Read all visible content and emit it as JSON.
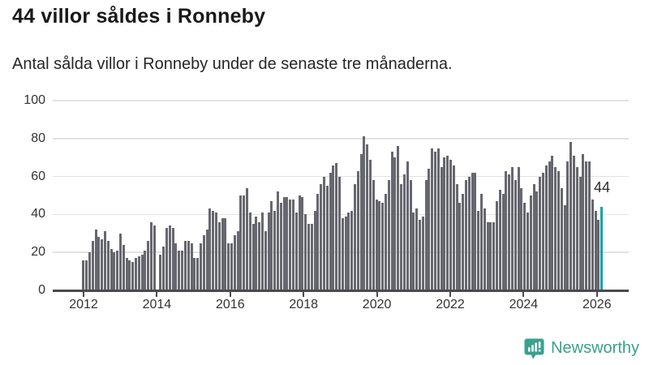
{
  "header": {
    "title": "44 villor såldes i Ronneby",
    "subtitle": "Antal sålda villor i Ronneby under de senaste tre månaderna."
  },
  "chart_data": {
    "type": "bar",
    "title": "44 villor såldes i Ronneby",
    "subtitle": "Antal sålda villor i Ronneby under de senaste tre månaderna.",
    "frequency": "monthly",
    "start_month": "2012-01",
    "end_month": "2026-01",
    "values": [
      16,
      16,
      20,
      26,
      32,
      28,
      27,
      31,
      26,
      22,
      20,
      21,
      30,
      24,
      17,
      16,
      15,
      17,
      18,
      19,
      21,
      26,
      36,
      34,
      0,
      19,
      23,
      33,
      34,
      33,
      25,
      21,
      21,
      26,
      26,
      25,
      17,
      17,
      25,
      29,
      32,
      43,
      42,
      41,
      36,
      38,
      38,
      25,
      25,
      29,
      31,
      50,
      50,
      54,
      41,
      35,
      39,
      36,
      41,
      31,
      41,
      47,
      42,
      52,
      46,
      49,
      49,
      48,
      48,
      41,
      50,
      49,
      40,
      35,
      35,
      42,
      51,
      56,
      60,
      55,
      62,
      66,
      67,
      60,
      38,
      39,
      41,
      42,
      56,
      63,
      72,
      81,
      77,
      69,
      58,
      48,
      47,
      46,
      51,
      58,
      73,
      70,
      76,
      56,
      61,
      68,
      58,
      41,
      43,
      37,
      39,
      58,
      64,
      75,
      73,
      75,
      65,
      70,
      71,
      69,
      66,
      56,
      46,
      51,
      58,
      60,
      62,
      62,
      42,
      51,
      43,
      36,
      36,
      36,
      47,
      53,
      51,
      63,
      61,
      65,
      58,
      65,
      54,
      46,
      41,
      50,
      56,
      52,
      60,
      62,
      66,
      68,
      71,
      65,
      63,
      54,
      45,
      68,
      78,
      71,
      65,
      60,
      72,
      68,
      68,
      48,
      42,
      37,
      44
    ],
    "highlight": {
      "label": "44",
      "value": 44,
      "month": "2026-01",
      "color": "#00a5a8"
    },
    "bar_color": "#67676f",
    "x_tick_labels": [
      "2012",
      "2014",
      "2016",
      "2018",
      "2020",
      "2022",
      "2024",
      "2026"
    ],
    "yticks": [
      0,
      20,
      40,
      60,
      80,
      100
    ],
    "ylim": [
      0,
      100
    ],
    "xlabel": "",
    "ylabel": "",
    "grid": true,
    "legend": false
  },
  "colors": {
    "accent_teal": "#00a5a8",
    "bar_gray": "#67676f",
    "axis": "#4b4b4b",
    "grid": "#e2e2e2",
    "text": "#262626",
    "brand_teal": "#38a18c"
  },
  "footer": {
    "brand": "Newsworthy",
    "logo_icon": "newsworthy-speech-bubble-chart-icon"
  }
}
